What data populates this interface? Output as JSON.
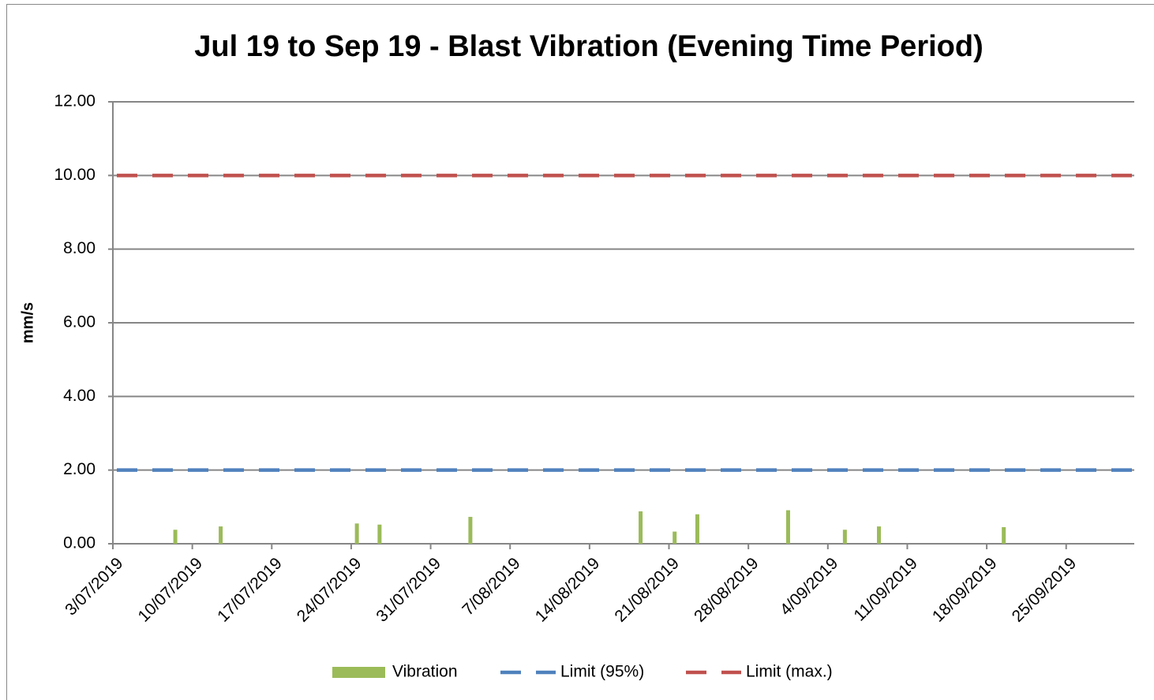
{
  "chart_data": {
    "type": "bar",
    "title": "Jul 19 to Sep 19 - Blast Vibration (Evening Time Period)",
    "y_label": "mm/s",
    "xlim": [
      "2019-07-03",
      "2019-10-01"
    ],
    "xticks": [
      {
        "value": "2019-07-03",
        "label": "3/07/2019"
      },
      {
        "value": "2019-07-10",
        "label": "10/07/2019"
      },
      {
        "value": "2019-07-17",
        "label": "17/07/2019"
      },
      {
        "value": "2019-07-24",
        "label": "24/07/2019"
      },
      {
        "value": "2019-07-31",
        "label": "31/07/2019"
      },
      {
        "value": "2019-08-07",
        "label": "7/08/2019"
      },
      {
        "value": "2019-08-14",
        "label": "14/08/2019"
      },
      {
        "value": "2019-08-21",
        "label": "21/08/2019"
      },
      {
        "value": "2019-08-28",
        "label": "28/08/2019"
      },
      {
        "value": "2019-09-04",
        "label": "4/09/2019"
      },
      {
        "value": "2019-09-11",
        "label": "11/09/2019"
      },
      {
        "value": "2019-09-18",
        "label": "18/09/2019"
      },
      {
        "value": "2019-09-25",
        "label": "25/09/2019"
      }
    ],
    "ylim": [
      0,
      12
    ],
    "yticks": [
      {
        "value": 0,
        "label": "0.00"
      },
      {
        "value": 2,
        "label": "2.00"
      },
      {
        "value": 4,
        "label": "4.00"
      },
      {
        "value": 6,
        "label": "6.00"
      },
      {
        "value": 8,
        "label": "8.00"
      },
      {
        "value": 10,
        "label": "10.00"
      },
      {
        "value": 12,
        "label": "12.00"
      }
    ],
    "grid": true,
    "legend": "bottom",
    "series": [
      {
        "name": "Vibration",
        "type": "bar",
        "color": "#9bbb59",
        "x": [
          "2019-07-08",
          "2019-07-12",
          "2019-07-24",
          "2019-07-26",
          "2019-08-03",
          "2019-08-18",
          "2019-08-21",
          "2019-08-23",
          "2019-08-31",
          "2019-09-05",
          "2019-09-08",
          "2019-09-19"
        ],
        "values": [
          0.38,
          0.47,
          0.55,
          0.52,
          0.73,
          0.88,
          0.33,
          0.8,
          0.91,
          0.38,
          0.47,
          0.45
        ]
      },
      {
        "name": "Limit (95%)",
        "type": "line",
        "color": "#4f81bd",
        "x": [
          "2019-07-03",
          "2019-10-01"
        ],
        "values": [
          2,
          2
        ]
      },
      {
        "name": "Limit (max.)",
        "type": "line",
        "color": "#c0504d",
        "x": [
          "2019-07-03",
          "2019-10-01"
        ],
        "values": [
          10,
          10
        ]
      }
    ]
  }
}
